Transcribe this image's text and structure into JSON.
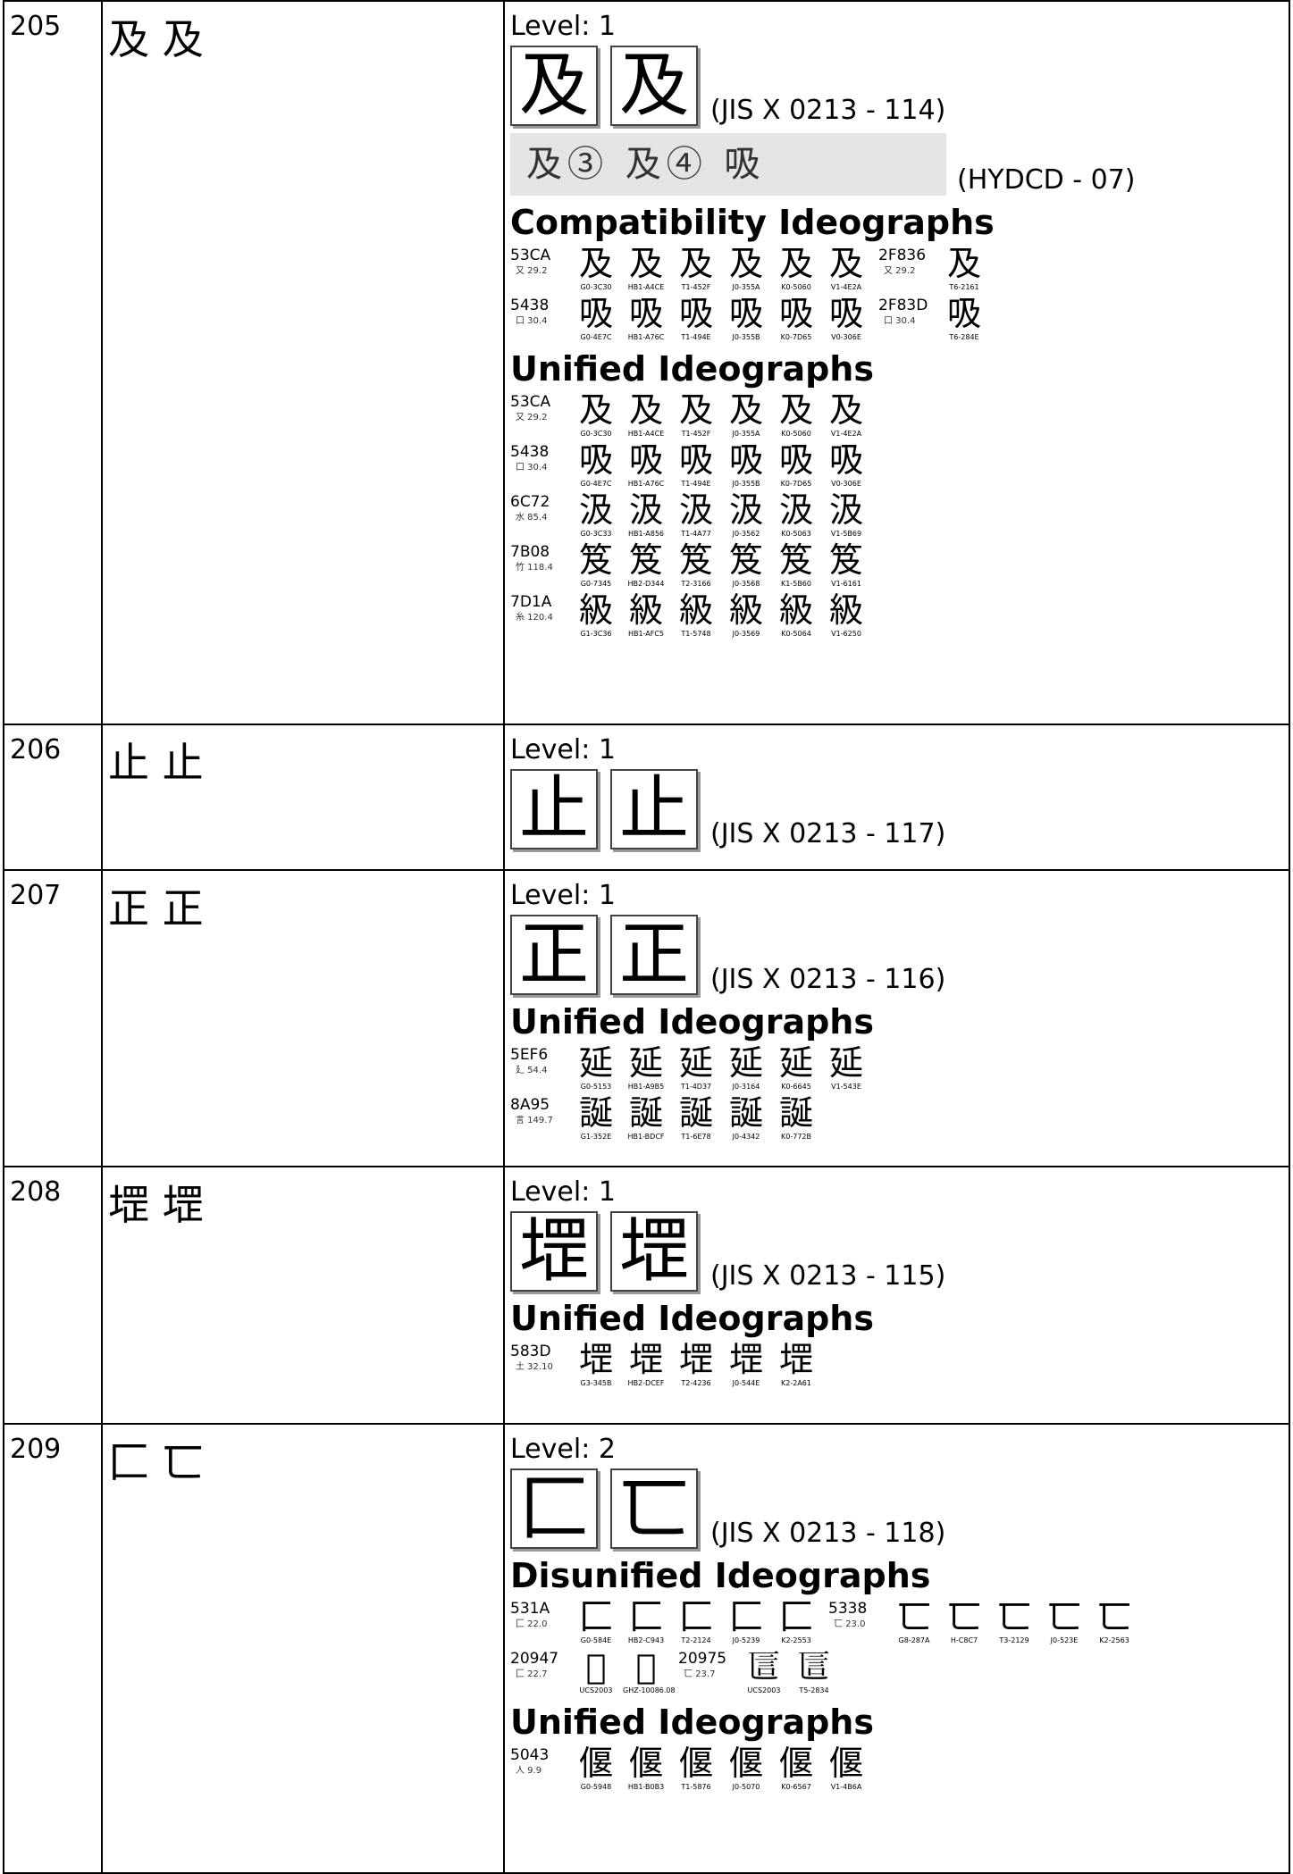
{
  "rows": [
    {
      "id": "205",
      "chars": "及 及",
      "level": "Level: 1",
      "jis": {
        "glyphs": [
          "及",
          "及"
        ],
        "label": "(JIS X 0213 - 114)"
      },
      "hydcd": {
        "text": "及③ 及④ 吸",
        "label": "(HYDCD - 07)"
      },
      "sections": [
        {
          "heading": "Compatibility Ideographs",
          "lines": [
            [
              {
                "code": "53CA",
                "radical": "又 29.2",
                "glyphs": [
                  {
                    "char": "及",
                    "source": "G0-3C30"
                  },
                  {
                    "char": "及",
                    "source": "HB1-A4CE"
                  },
                  {
                    "char": "及",
                    "source": "T1-452F"
                  },
                  {
                    "char": "及",
                    "source": "J0-355A"
                  },
                  {
                    "char": "及",
                    "source": "K0-5060"
                  },
                  {
                    "char": "及",
                    "source": "V1-4E2A"
                  }
                ]
              },
              {
                "code": "2F836",
                "radical": "又 29.2",
                "glyphs": [
                  {
                    "char": "及",
                    "source": "T6-2161"
                  }
                ]
              }
            ],
            [
              {
                "code": "5438",
                "radical": "口 30.4",
                "glyphs": [
                  {
                    "char": "吸",
                    "source": "G0-4E7C"
                  },
                  {
                    "char": "吸",
                    "source": "HB1-A76C"
                  },
                  {
                    "char": "吸",
                    "source": "T1-494E"
                  },
                  {
                    "char": "吸",
                    "source": "J0-355B"
                  },
                  {
                    "char": "吸",
                    "source": "K0-7D65"
                  },
                  {
                    "char": "吸",
                    "source": "V0-306E"
                  }
                ]
              },
              {
                "code": "2F83D",
                "radical": "口 30.4",
                "glyphs": [
                  {
                    "char": "吸",
                    "source": "T6-284E"
                  }
                ]
              }
            ]
          ]
        },
        {
          "heading": "Unified Ideographs",
          "lines": [
            [
              {
                "code": "53CA",
                "radical": "又 29.2",
                "glyphs": [
                  {
                    "char": "及",
                    "source": "G0-3C30"
                  },
                  {
                    "char": "及",
                    "source": "HB1-A4CE"
                  },
                  {
                    "char": "及",
                    "source": "T1-452F"
                  },
                  {
                    "char": "及",
                    "source": "J0-355A"
                  },
                  {
                    "char": "及",
                    "source": "K0-5060"
                  },
                  {
                    "char": "及",
                    "source": "V1-4E2A"
                  }
                ]
              }
            ],
            [
              {
                "code": "5438",
                "radical": "口 30.4",
                "glyphs": [
                  {
                    "char": "吸",
                    "source": "G0-4E7C"
                  },
                  {
                    "char": "吸",
                    "source": "HB1-A76C"
                  },
                  {
                    "char": "吸",
                    "source": "T1-494E"
                  },
                  {
                    "char": "吸",
                    "source": "J0-355B"
                  },
                  {
                    "char": "吸",
                    "source": "K0-7D65"
                  },
                  {
                    "char": "吸",
                    "source": "V0-306E"
                  }
                ]
              }
            ],
            [
              {
                "code": "6C72",
                "radical": "水 85.4",
                "glyphs": [
                  {
                    "char": "汲",
                    "source": "G0-3C33"
                  },
                  {
                    "char": "汲",
                    "source": "HB1-A856"
                  },
                  {
                    "char": "汲",
                    "source": "T1-4A77"
                  },
                  {
                    "char": "汲",
                    "source": "J0-3562"
                  },
                  {
                    "char": "汲",
                    "source": "K0-5063"
                  },
                  {
                    "char": "汲",
                    "source": "V1-5B69"
                  }
                ]
              }
            ],
            [
              {
                "code": "7B08",
                "radical": "竹 118.4",
                "glyphs": [
                  {
                    "char": "笈",
                    "source": "G0-7345"
                  },
                  {
                    "char": "笈",
                    "source": "HB2-D344"
                  },
                  {
                    "char": "笈",
                    "source": "T2-3166"
                  },
                  {
                    "char": "笈",
                    "source": "J0-3568"
                  },
                  {
                    "char": "笈",
                    "source": "K1-5B60"
                  },
                  {
                    "char": "笈",
                    "source": "V1-6161"
                  }
                ]
              }
            ],
            [
              {
                "code": "7D1A",
                "radical": "糸 120.4",
                "glyphs": [
                  {
                    "char": "級",
                    "source": "G1-3C36"
                  },
                  {
                    "char": "級",
                    "source": "HB1-AFC5"
                  },
                  {
                    "char": "級",
                    "source": "T1-5748"
                  },
                  {
                    "char": "級",
                    "source": "J0-3569"
                  },
                  {
                    "char": "級",
                    "source": "K0-5064"
                  },
                  {
                    "char": "級",
                    "source": "V1-6250"
                  }
                ]
              }
            ]
          ]
        }
      ]
    },
    {
      "id": "206",
      "chars": "止 止",
      "level": "Level: 1",
      "jis": {
        "glyphs": [
          "止",
          "止"
        ],
        "label": "(JIS X 0213 - 117)"
      },
      "sections": []
    },
    {
      "id": "207",
      "chars": "正 正",
      "level": "Level: 1",
      "jis": {
        "glyphs": [
          "正",
          "正"
        ],
        "label": "(JIS X 0213 - 116)"
      },
      "sections": [
        {
          "heading": "Unified Ideographs",
          "lines": [
            [
              {
                "code": "5EF6",
                "radical": "廴 54.4",
                "glyphs": [
                  {
                    "char": "延",
                    "source": "G0-5153"
                  },
                  {
                    "char": "延",
                    "source": "HB1-A9B5"
                  },
                  {
                    "char": "延",
                    "source": "T1-4D37"
                  },
                  {
                    "char": "延",
                    "source": "J0-3164"
                  },
                  {
                    "char": "延",
                    "source": "K0-6645"
                  },
                  {
                    "char": "延",
                    "source": "V1-543E"
                  }
                ]
              }
            ],
            [
              {
                "code": "8A95",
                "radical": "言 149.7",
                "glyphs": [
                  {
                    "char": "誕",
                    "source": "G1-352E"
                  },
                  {
                    "char": "誕",
                    "source": "HB1-BDCF"
                  },
                  {
                    "char": "誕",
                    "source": "T1-6E78"
                  },
                  {
                    "char": "誕",
                    "source": "J0-4342"
                  },
                  {
                    "char": "誕",
                    "source": "K0-772B"
                  }
                ]
              }
            ]
          ]
        }
      ]
    },
    {
      "id": "208",
      "chars": "堽 堽",
      "level": "Level: 1",
      "jis": {
        "glyphs": [
          "堽",
          "堽"
        ],
        "label": "(JIS X 0213 - 115)"
      },
      "sections": [
        {
          "heading": "Unified Ideographs",
          "lines": [
            [
              {
                "code": "583D",
                "radical": "土 32.10",
                "glyphs": [
                  {
                    "char": "堽",
                    "source": "G3-345B"
                  },
                  {
                    "char": "堽",
                    "source": "HB2-DCEF"
                  },
                  {
                    "char": "堽",
                    "source": "T2-4236"
                  },
                  {
                    "char": "堽",
                    "source": "J0-544E"
                  },
                  {
                    "char": "堽",
                    "source": "K2-2A61"
                  }
                ]
              }
            ]
          ]
        }
      ]
    },
    {
      "id": "209",
      "chars": "匚 匸",
      "level": "Level: 2",
      "jis": {
        "glyphs": [
          "匚",
          "匸"
        ],
        "label": "(JIS X 0213 - 118)"
      },
      "sections": [
        {
          "heading": "Disunified Ideographs",
          "lines": [
            [
              {
                "code": "531A",
                "radical": "匚 22.0",
                "glyphs": [
                  {
                    "char": "匚",
                    "source": "G0-584E"
                  },
                  {
                    "char": "匚",
                    "source": "HB2-C943"
                  },
                  {
                    "char": "匚",
                    "source": "T2-2124"
                  },
                  {
                    "char": "匚",
                    "source": "J0-5239"
                  },
                  {
                    "char": "匚",
                    "source": "K2-2553"
                  }
                ]
              },
              {
                "code": "5338",
                "radical": "匸 23.0",
                "glyphs": [
                  {
                    "char": "匸",
                    "source": "G8-287A"
                  },
                  {
                    "char": "匸",
                    "source": "H-C8C7"
                  },
                  {
                    "char": "匸",
                    "source": "T3-2129"
                  },
                  {
                    "char": "匸",
                    "source": "J0-523E"
                  },
                  {
                    "char": "匸",
                    "source": "K2-2563"
                  }
                ]
              }
            ],
            [
              {
                "code": "20947",
                "radical": "匚 22.7",
                "glyphs": [
                  {
                    "char": "𠥇",
                    "source": "UCS2003"
                  },
                  {
                    "char": "𠥇",
                    "source": "GHZ-10086.08"
                  }
                ]
              },
              {
                "code": "20975",
                "radical": "匸 23.7",
                "glyphs": [
                  {
                    "char": "𠥵",
                    "source": "UCS2003"
                  },
                  {
                    "char": "𠥵",
                    "source": "T5-2834"
                  }
                ]
              }
            ]
          ]
        },
        {
          "heading": "Unified Ideographs",
          "lines": [
            [
              {
                "code": "5043",
                "radical": "人 9.9",
                "glyphs": [
                  {
                    "char": "偃",
                    "source": "G0-5948"
                  },
                  {
                    "char": "偃",
                    "source": "HB1-B0B3"
                  },
                  {
                    "char": "偃",
                    "source": "T1-5876"
                  },
                  {
                    "char": "偃",
                    "source": "J0-5070"
                  },
                  {
                    "char": "偃",
                    "source": "K0-6567"
                  },
                  {
                    "char": "偃",
                    "source": "V1-4B6A"
                  }
                ]
              }
            ]
          ]
        }
      ]
    }
  ]
}
